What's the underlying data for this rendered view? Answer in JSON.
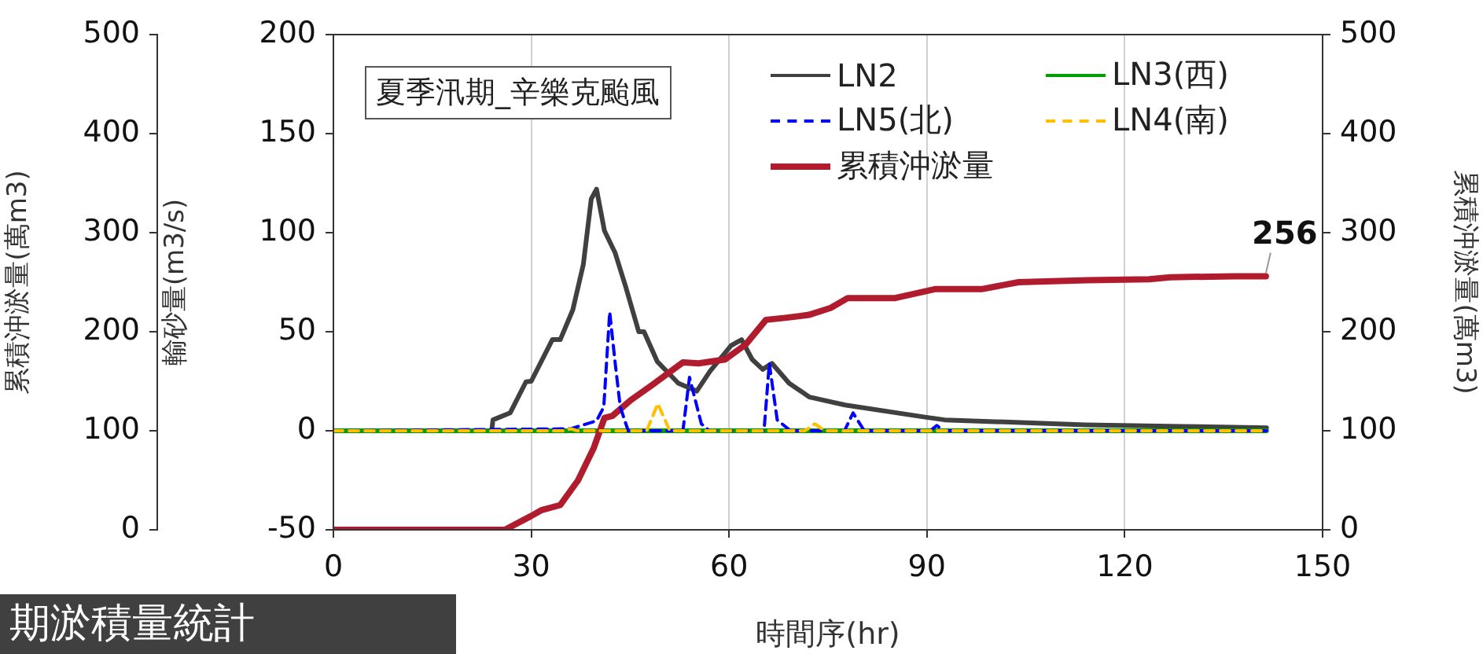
{
  "chart_data": {
    "type": "line",
    "title": "夏季汛期_辛樂克颱風",
    "xlabel": "時間序(hr)",
    "ylabel": "輸砂量(m3/s)",
    "y2label": "累積沖淤量(萬m3)",
    "y3label": "累積沖淤量(萬m3)",
    "xlim": [
      0,
      150
    ],
    "xticks": [
      0,
      30,
      60,
      90,
      120,
      150
    ],
    "ylim": [
      -50,
      200
    ],
    "yticks": [
      -50,
      0,
      50,
      100,
      150,
      200
    ],
    "y2lim": [
      0,
      500
    ],
    "y2ticks": [
      0,
      100,
      200,
      300,
      400,
      500
    ],
    "y3lim": [
      0,
      500
    ],
    "y3ticks": [
      0,
      100,
      200,
      300,
      400,
      500
    ],
    "grid": "x",
    "legend": "top right",
    "marker": "none",
    "annotations": [
      "期淤積量統計"
    ],
    "series": [
      {
        "name": "LN2",
        "color": "#404040",
        "line_style": "solid",
        "x": [
          24,
          24.2,
          26.8,
          29.2,
          30,
          33.2,
          34.4,
          36.3,
          37.9,
          39.1,
          39.9,
          41.1,
          42.7,
          44.3,
          46.3,
          47.1,
          49.1,
          52.3,
          55.1,
          57.1,
          60.3,
          61.9,
          63.5,
          65.1,
          66.5,
          69.1,
          72.2,
          77.6,
          89.5,
          92.7,
          114,
          128.6,
          141.5
        ],
        "values": [
          0,
          5.5,
          9,
          24.7,
          25,
          46,
          46,
          61,
          84,
          117,
          122,
          101,
          90,
          73,
          50,
          50,
          35,
          24,
          20,
          30,
          43,
          46,
          36,
          31,
          34,
          24,
          17,
          13,
          7,
          5.5,
          3,
          2.2,
          1.5
        ]
      },
      {
        "name": "LN3(西)",
        "color": "#00a000",
        "line_style": "solid",
        "x": [
          0,
          141.5
        ],
        "values": [
          0,
          0
        ]
      },
      {
        "name": "LN5(北)",
        "color": "#0000ff",
        "line_style": "dashed",
        "x": [
          0,
          36,
          39.9,
          41,
          41.9,
          42.7,
          43.5,
          44.7,
          53,
          54,
          55.8,
          57,
          65.3,
          66.1,
          67.3,
          69.3,
          77.5,
          78.8,
          80.5,
          90.5,
          91.5,
          92.5,
          141.5
        ],
        "values": [
          0,
          1,
          5,
          12,
          60,
          35,
          12,
          0,
          0,
          27,
          3.5,
          0,
          0,
          34,
          5.5,
          0,
          0,
          9,
          0,
          0,
          2.7,
          0,
          0
        ]
      },
      {
        "name": "LN4(南)",
        "color": "#ffc000",
        "line_style": "dashed",
        "x": [
          0,
          35,
          36,
          37,
          47.5,
          49.2,
          51,
          71.5,
          73,
          74.5,
          141.5
        ],
        "values": [
          0,
          0,
          1,
          0,
          0,
          13.7,
          0,
          0,
          3.5,
          0,
          0
        ]
      },
      {
        "name": "累積沖淤量",
        "color": "#b01c2e",
        "line_style": "solid",
        "axis": "y2",
        "x": [
          0,
          26,
          30,
          31.6,
          34.4,
          37.1,
          39.5,
          41.1,
          42.3,
          45.1,
          48.3,
          53,
          55.4,
          59.4,
          62.5,
          65.6,
          68.5,
          72.1,
          75.4,
          78,
          85.2,
          91.2,
          98.3,
          103.9,
          114.2,
          123.7,
          126.9,
          136.5,
          141.4
        ],
        "values": [
          0,
          0,
          14,
          20,
          25,
          50,
          83,
          113,
          115,
          131,
          146,
          169,
          168,
          172,
          187,
          212,
          214,
          217,
          224,
          234,
          234,
          243,
          243,
          250,
          252,
          253,
          255,
          256,
          256
        ],
        "value_labels": [
          null,
          null,
          null,
          null,
          null,
          null,
          null,
          null,
          null,
          null,
          null,
          null,
          null,
          null,
          null,
          null,
          null,
          null,
          null,
          null,
          null,
          null,
          null,
          null,
          null,
          null,
          null,
          null,
          "256"
        ]
      }
    ]
  }
}
